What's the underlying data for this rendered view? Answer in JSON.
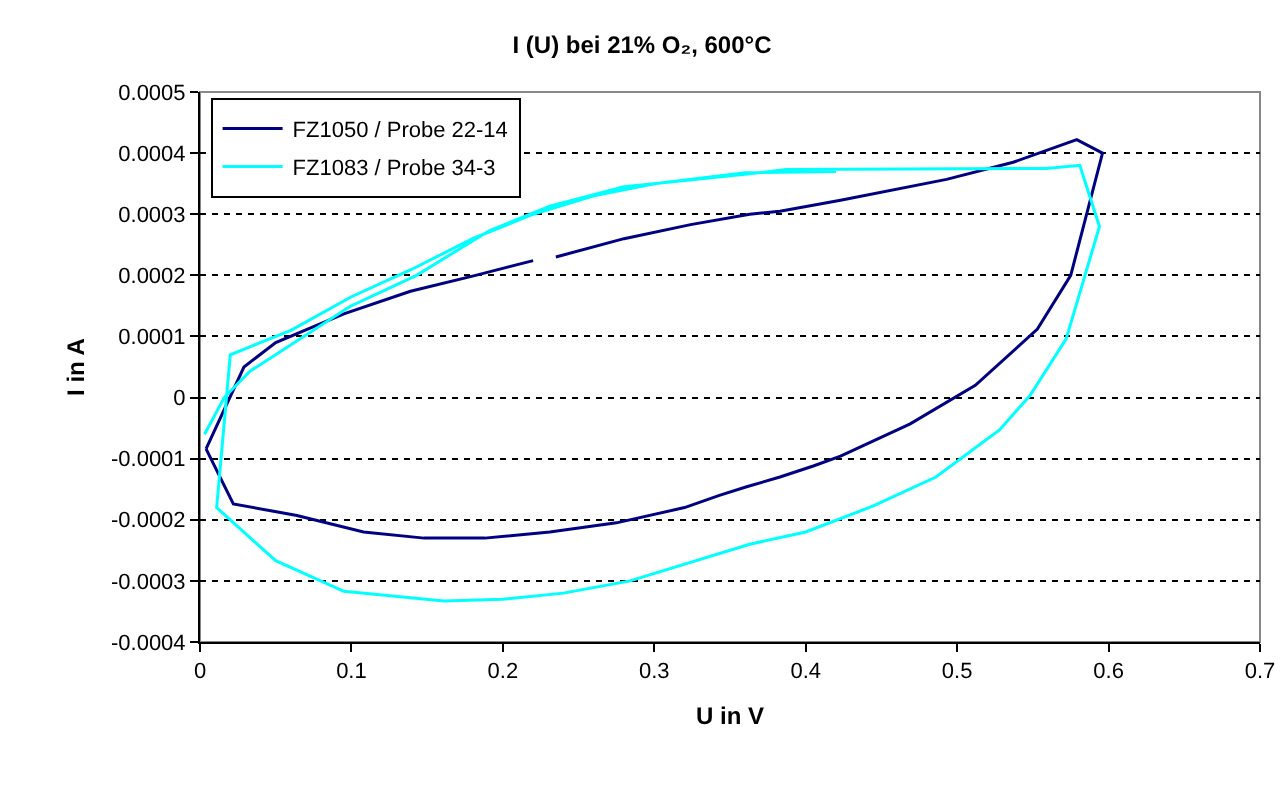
{
  "chart_data": {
    "type": "line",
    "title": "I (U) bei 21% O₂, 600°C",
    "xlabel": "U in V",
    "ylabel": "I in A",
    "xlim": [
      0,
      0.7
    ],
    "xticks": [
      0,
      0.1,
      0.2,
      0.3,
      0.4,
      0.5,
      0.6,
      0.7
    ],
    "ylim": [
      -0.0004,
      0.0005
    ],
    "yticks": [
      -0.0004,
      -0.0003,
      -0.0002,
      -0.0001,
      0,
      0.0001,
      0.0002,
      0.0003,
      0.0004,
      0.0005
    ],
    "grid": "y",
    "legend": "top left",
    "marker": "none",
    "line_style": "solid",
    "series": [
      {
        "name": "FZ1050 / Probe 22-14",
        "color": "#000080",
        "x": [
          0.004,
          0.029,
          0.05,
          0.095,
          0.139,
          0.182,
          0.22,
          0.228,
          0.235,
          0.28,
          0.324,
          0.363,
          0.383,
          0.423,
          0.493,
          0.537,
          0.579,
          0.596,
          0.575,
          0.553,
          0.512,
          0.469,
          0.423,
          0.405,
          0.383,
          0.361,
          0.343,
          0.32,
          0.275,
          0.231,
          0.188,
          0.148,
          0.108,
          0.064,
          0.022,
          0.004
        ],
        "values": [
          -8.4e-05,
          5e-05,
          9e-05,
          0.000137,
          0.000174,
          0.0002,
          0.000224,
          null,
          0.00023,
          0.00026,
          0.000283,
          0.0003,
          0.000305,
          0.000323,
          0.000357,
          0.000385,
          0.000422,
          0.0004,
          0.0002,
          0.000112,
          2e-05,
          -4.3e-05,
          -9.6e-05,
          -0.000112,
          -0.00013,
          -0.000146,
          -0.00016,
          -0.00018,
          -0.000205,
          -0.00022,
          -0.00023,
          -0.00023,
          -0.00022,
          -0.000193,
          -0.000174,
          -8.4e-05
        ]
      },
      {
        "name": "FZ1083 / Probe 34-3",
        "color": "#00ffff",
        "x": [
          0.42,
          0.36,
          0.3,
          0.26,
          0.22,
          0.18,
          0.14,
          0.1,
          0.06,
          0.02,
          0.011,
          0.05,
          0.095,
          0.161,
          0.2,
          0.24,
          0.284,
          0.363,
          0.4,
          0.445,
          0.486,
          0.528,
          0.548,
          0.572,
          0.594,
          0.581,
          0.559,
          0.387,
          0.363,
          0.28,
          0.231,
          0.191,
          0.143,
          0.099,
          0.033,
          0.016,
          0.003
        ],
        "values": [
          0.00037,
          0.000368,
          0.00035,
          0.00033,
          0.0003,
          0.00026,
          0.00021,
          0.000165,
          0.00011,
          7e-05,
          -0.00018,
          -0.000267,
          -0.000317,
          -0.000333,
          -0.00033,
          -0.00032,
          -0.0003,
          -0.00024,
          -0.00022,
          -0.000177,
          -0.00013,
          -5.3e-05,
          3e-06,
          9.6e-05,
          0.00028,
          0.00038,
          0.000375,
          0.000373,
          0.000366,
          0.000345,
          0.000313,
          0.000273,
          0.0002,
          0.000149,
          4.3e-05,
          0,
          -6e-05
        ]
      }
    ]
  }
}
